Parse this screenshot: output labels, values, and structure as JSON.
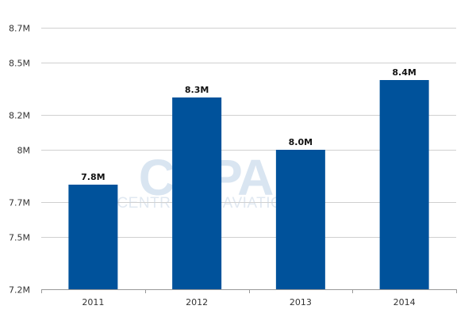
{
  "watermark": {
    "logo_text": "CAPA",
    "tagline": "CENTRE FOR AVIATION"
  },
  "colors": {
    "bar": "#00529b",
    "grid": "#d0d0d0",
    "axis": "#999999"
  },
  "chart_data": {
    "type": "bar",
    "title": "",
    "xlabel": "",
    "ylabel": "",
    "categories": [
      "2011",
      "2012",
      "2013",
      "2014"
    ],
    "values": [
      7.8,
      8.3,
      8.0,
      8.4
    ],
    "data_labels": [
      "7.8M",
      "8.3M",
      "8.0M",
      "8.4M"
    ],
    "ylim": [
      7.2,
      8.7
    ],
    "y_tick_values": [
      7.2,
      7.5,
      7.7,
      8.0,
      8.2,
      8.5,
      8.7
    ],
    "y_tick_labels": [
      "7.2M",
      "7.5M",
      "7.7M",
      "8M",
      "8.2M",
      "8.5M",
      "8.7M"
    ],
    "grid": true,
    "legend": "none"
  }
}
